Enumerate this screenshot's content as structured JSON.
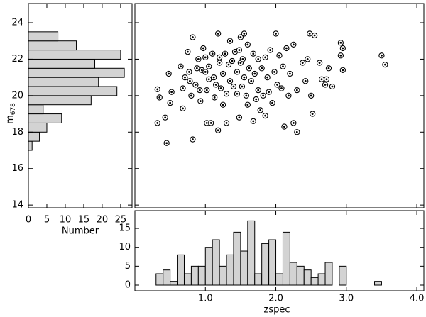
{
  "chart_data": [
    {
      "type": "histogram",
      "orientation": "horizontal",
      "color": "#d3d3d3",
      "bins": [
        17.0,
        17.5,
        18.0,
        18.5,
        19.0,
        19.5,
        20.0,
        20.5,
        21.0,
        21.5,
        22.0,
        22.5,
        23.0,
        23.5
      ],
      "values": [
        1,
        3,
        5,
        9,
        4,
        17,
        24,
        19,
        26,
        18,
        25,
        13,
        8
      ],
      "xlim": [
        0,
        28.1
      ],
      "ylim": [
        13.85,
        25.05
      ],
      "xticks": [
        0,
        5,
        10,
        15,
        20,
        25
      ],
      "yticks": [
        14,
        16,
        18,
        20,
        22,
        24
      ],
      "xlabel": "Number",
      "ylabel": "m",
      "ylabel_subscript": "678"
    },
    {
      "type": "scatter",
      "color": "#000000",
      "xlim": [
        0,
        4.1
      ],
      "ylim": [
        13.85,
        25.05
      ],
      "x": [
        0.32,
        0.35,
        0.32,
        0.43,
        0.45,
        0.48,
        0.5,
        0.52,
        0.65,
        0.68,
        0.68,
        0.71,
        0.75,
        0.77,
        0.78,
        0.8,
        0.82,
        0.82,
        0.86,
        0.88,
        0.9,
        0.92,
        0.93,
        0.95,
        0.97,
        1.0,
        1.0,
        1.02,
        1.02,
        1.05,
        1.05,
        1.08,
        1.1,
        1.12,
        1.13,
        1.15,
        1.18,
        1.18,
        1.2,
        1.2,
        1.22,
        1.25,
        1.25,
        1.28,
        1.3,
        1.3,
        1.33,
        1.35,
        1.35,
        1.38,
        1.4,
        1.42,
        1.45,
        1.45,
        1.48,
        1.48,
        1.5,
        1.5,
        1.52,
        1.53,
        1.55,
        1.55,
        1.58,
        1.6,
        1.6,
        1.62,
        1.65,
        1.68,
        1.68,
        1.7,
        1.72,
        1.75,
        1.75,
        1.78,
        1.8,
        1.82,
        1.85,
        1.85,
        1.88,
        1.9,
        1.92,
        1.95,
        1.98,
        2.0,
        2.02,
        2.05,
        2.08,
        2.1,
        2.12,
        2.15,
        2.18,
        2.2,
        2.25,
        2.25,
        2.3,
        2.3,
        2.38,
        2.42,
        2.45,
        2.48,
        2.5,
        2.52,
        2.55,
        2.62,
        2.65,
        2.7,
        2.72,
        2.75,
        2.8,
        2.92,
        2.92,
        2.95,
        2.95,
        3.5,
        3.55
      ],
      "y": [
        20.35,
        19.9,
        18.5,
        18.8,
        17.4,
        21.2,
        19.6,
        20.2,
        21.6,
        20.4,
        19.3,
        21.0,
        22.4,
        21.3,
        20.8,
        20.0,
        23.2,
        17.6,
        20.6,
        21.5,
        22.0,
        20.3,
        19.7,
        21.4,
        22.6,
        22.1,
        21.3,
        20.3,
        18.5,
        21.6,
        20.9,
        18.5,
        22.3,
        21.0,
        19.9,
        20.6,
        23.4,
        18.1,
        22.1,
        21.8,
        20.4,
        21.2,
        19.5,
        22.3,
        20.1,
        18.5,
        21.7,
        23.0,
        20.8,
        21.9,
        20.5,
        22.4,
        21.3,
        20.1,
        22.5,
        18.8,
        23.2,
        21.8,
        20.5,
        22.0,
        23.4,
        21.0,
        20.0,
        22.8,
        19.5,
        21.5,
        20.8,
        22.3,
        18.6,
        21.2,
        19.8,
        22.0,
        20.3,
        19.2,
        21.5,
        20.0,
        18.9,
        22.1,
        21.0,
        20.2,
        22.5,
        19.6,
        21.3,
        23.4,
        20.6,
        22.2,
        20.4,
        21.6,
        18.3,
        22.6,
        20.0,
        21.2,
        18.5,
        22.8,
        20.3,
        18.0,
        21.8,
        20.8,
        22.0,
        23.4,
        20.0,
        19.0,
        23.3,
        21.8,
        20.9,
        20.6,
        20.9,
        21.5,
        20.5,
        22.9,
        22.2,
        22.6,
        21.4,
        22.2,
        21.7
      ]
    },
    {
      "type": "histogram",
      "orientation": "vertical",
      "color": "#d3d3d3",
      "bins": [
        0.3,
        0.4,
        0.5,
        0.6,
        0.7,
        0.8,
        0.9,
        1.0,
        1.1,
        1.2,
        1.3,
        1.4,
        1.5,
        1.6,
        1.7,
        1.8,
        1.9,
        2.0,
        2.1,
        2.2,
        2.3,
        2.4,
        2.5,
        2.6,
        2.7,
        2.8,
        2.9,
        3.0,
        3.1,
        3.2,
        3.3,
        3.4,
        3.5
      ],
      "values": [
        3,
        4,
        1,
        8,
        3,
        5,
        5,
        10,
        12,
        5,
        8,
        14,
        9,
        17,
        3,
        11,
        12,
        3,
        14,
        6,
        5,
        4,
        2,
        3,
        6,
        0,
        5,
        0,
        0,
        0,
        0,
        1
      ],
      "xlim": [
        0,
        4.1
      ],
      "ylim": [
        -1.5,
        19.7
      ],
      "xticks": [
        {
          "value": 1,
          "label": "1.0"
        },
        {
          "value": 2,
          "label": "2.0"
        },
        {
          "value": 3,
          "label": "3.0"
        },
        {
          "value": 4,
          "label": "4.0"
        }
      ],
      "yticks": [
        0,
        5,
        10,
        15
      ],
      "xlabel": "zspec"
    }
  ]
}
